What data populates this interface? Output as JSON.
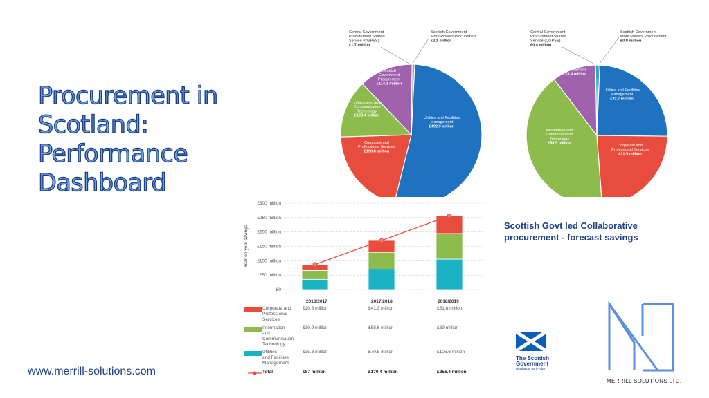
{
  "title_lines": [
    "Procurement in",
    "Scotland:",
    "Performance",
    "Dashboard"
  ],
  "website": "www.merrill-solutions.com",
  "caption_lines": [
    "Scottish Govt led Collaborative",
    "procurement - forecast savings"
  ],
  "colors": {
    "blue": "#1e72bf",
    "red": "#e84c3d",
    "green": "#8dbb4c",
    "purple": "#a061ad",
    "grey": "#9a9a9a",
    "teal": "#1ab3c4",
    "dark": "#1d3f8a"
  },
  "logos": {
    "scottish_gov": [
      "The Scottish",
      "Government",
      "Riaghaltas na h-Alba"
    ],
    "merrill": "MERRILL SOLUTIONS LTD."
  },
  "chart_data": [
    {
      "type": "pie",
      "title": "",
      "slices": [
        {
          "name": "Utilities and Facilities Management",
          "value": 492.9,
          "label": [
            "Utilities and Facilities",
            "Management",
            "£492.9 million"
          ],
          "color": "#1e72bf"
        },
        {
          "name": "Corporate and Professional Services",
          "value": 190.8,
          "label": [
            "Corporate and",
            "Professional Services",
            "£190.8 million"
          ],
          "color": "#e84c3d"
        },
        {
          "name": "Information and Communication Technology",
          "value": 123.4,
          "label": [
            "Information and",
            "Communication",
            "Technology",
            "£123.4 million"
          ],
          "color": "#8dbb4c"
        },
        {
          "name": "Scottish Government Procurement",
          "value": 114.2,
          "label": [
            "Scottish",
            "Government",
            "Procurement",
            "£114.2 million"
          ],
          "color": "#a061ad"
        },
        {
          "name": "Central Government Procurement Shared Service (CGPSS)",
          "value": 1.7,
          "label": [
            "Central Government",
            "Procurement Shared",
            "Service (CGPSS)",
            "£1.7 million"
          ],
          "color": "#9a9a9a"
        },
        {
          "name": "Scottish Government More Powers Procurement",
          "value": 2.1,
          "label": [
            "Scottish Government",
            "More Powers Procurement",
            "£2.1 million"
          ],
          "color": "#e84c3d"
        }
      ]
    },
    {
      "type": "pie",
      "title": "",
      "slices": [
        {
          "name": "Utilities and Facilities Management",
          "value": 32.7,
          "label": [
            "Utilities and Facilities",
            "Management",
            "£32.7 million"
          ],
          "color": "#1e72bf"
        },
        {
          "name": "Corporate and Professional Services",
          "value": 31.5,
          "label": [
            "Corporate and",
            "Professional Services",
            "£31.5 million"
          ],
          "color": "#e84c3d"
        },
        {
          "name": "Information and Communication Technology",
          "value": 54.5,
          "label": [
            "Information and",
            "Communication",
            "Technology",
            "£54.5 million"
          ],
          "color": "#8dbb4c"
        },
        {
          "name": "Scottish Government Procurement",
          "value": 13.4,
          "label": [
            "Scottish",
            "Government",
            "Procurement",
            "£13.4 million"
          ],
          "color": "#a061ad"
        },
        {
          "name": "Central Government Procurement Shared Service (CGPSS)",
          "value": 0.4,
          "label": [
            "Central Government",
            "Procurement Shared",
            "Service (CGPSS)",
            "£0.4 million"
          ],
          "color": "#1ab3c4"
        },
        {
          "name": "Scottish Government More Powers Procurement",
          "value": 0.9,
          "label": [
            "Scottish Government",
            "More Powers Procurement",
            "£0.9 million"
          ],
          "color": "#1e72bf"
        }
      ]
    },
    {
      "type": "bar",
      "stacked": true,
      "title": "",
      "ylabel": "Year-on-year savings",
      "ylim": [
        0,
        300
      ],
      "yticks": [
        {
          "value": 0,
          "label": "£0"
        },
        {
          "value": 50,
          "label": "£50 million"
        },
        {
          "value": 100,
          "label": "£100 million"
        },
        {
          "value": 150,
          "label": "£150 million"
        },
        {
          "value": 200,
          "label": "£200 million"
        },
        {
          "value": 250,
          "label": "£250 million"
        },
        {
          "value": 300,
          "label": "£300 million"
        }
      ],
      "categories": [
        "2016/2017",
        "2017/2018",
        "2018/2019"
      ],
      "series": [
        {
          "name": "Utilities and Facilities Management",
          "legend": [
            "Utilities",
            "and Facilities",
            "Management"
          ],
          "color": "#1ab3c4",
          "values": [
            35.3,
            70.5,
            105.6
          ],
          "labels": [
            "£35.3 million",
            "£70.5 million",
            "£105.6 million"
          ]
        },
        {
          "name": "Information and Communication Technology",
          "legend": [
            "Information",
            "and",
            "Communication",
            "Technology"
          ],
          "color": "#8dbb4c",
          "values": [
            30.9,
            58.6,
            89
          ],
          "labels": [
            "£30.9 million",
            "£58.6 million",
            "£89 million"
          ]
        },
        {
          "name": "Corporate and Professional Services",
          "legend": [
            "Corporate and",
            "Professional",
            "Services"
          ],
          "color": "#e84c3d",
          "values": [
            20.8,
            41.3,
            61.8
          ],
          "labels": [
            "£20.8 million",
            "£41.3 million",
            "£61.8 million"
          ]
        }
      ],
      "total": {
        "name": "Total",
        "values": [
          87,
          170.4,
          256.4
        ],
        "labels": [
          "£87 million",
          "£170.4 million",
          "£256.4 million"
        ],
        "color": "#e84c3d"
      }
    }
  ]
}
